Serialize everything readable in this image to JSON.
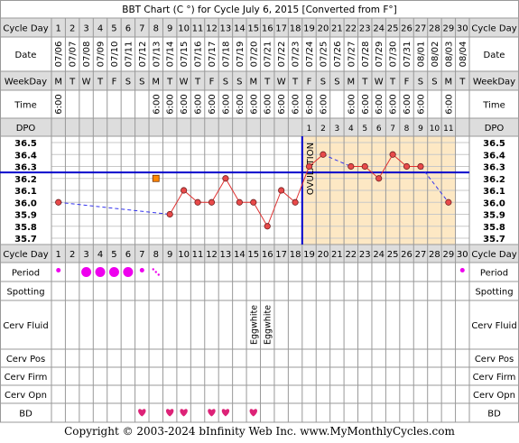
{
  "title": "BBT Chart (C °) for Cycle July 6, 2015  [Converted from F°]",
  "copyright": "Copyright © 2003-2024 bInfinity Web Inc.    www.MyMonthlyCycles.com",
  "row_labels": {
    "cycle_day": "Cycle Day",
    "date": "Date",
    "weekday": "WeekDay",
    "time": "Time",
    "dpo": "DPO",
    "period": "Period",
    "spotting": "Spotting",
    "cerv_fluid": "Cerv Fluid",
    "cerv_pos": "Cerv Pos",
    "cerv_firm": "Cerv Firm",
    "cerv_opn": "Cerv Opn",
    "bd": "BD"
  },
  "ovulation_label": "OVULATION",
  "colors": {
    "grid": "#999999",
    "header_bg": "#dddddd",
    "shade": "#fde8c4",
    "coverline": "#0000cc",
    "temp_line": "#e03030",
    "temp_point": "#e84a4a",
    "projection": "#3333ee",
    "period": "#ee00ee",
    "heart": "#dd2277",
    "off_point": "#ff8800"
  },
  "chart_data": {
    "type": "line",
    "cycle_days": [
      1,
      2,
      3,
      4,
      5,
      6,
      7,
      8,
      9,
      10,
      11,
      12,
      13,
      14,
      15,
      16,
      17,
      18,
      19,
      20,
      21,
      22,
      23,
      24,
      25,
      26,
      27,
      28,
      29,
      30
    ],
    "dates": [
      "07/06",
      "07/07",
      "07/08",
      "07/09",
      "07/10",
      "07/11",
      "07/12",
      "07/13",
      "07/14",
      "07/15",
      "07/16",
      "07/17",
      "07/18",
      "07/19",
      "07/20",
      "07/21",
      "07/22",
      "07/23",
      "07/24",
      "07/25",
      "07/26",
      "07/27",
      "07/28",
      "07/29",
      "07/30",
      "07/31",
      "08/01",
      "08/02",
      "08/03",
      "08/04"
    ],
    "weekdays": [
      "M",
      "T",
      "W",
      "T",
      "F",
      "S",
      "S",
      "M",
      "T",
      "W",
      "T",
      "F",
      "S",
      "S",
      "M",
      "T",
      "W",
      "T",
      "F",
      "S",
      "S",
      "M",
      "T",
      "W",
      "T",
      "F",
      "S",
      "S",
      "M",
      "T"
    ],
    "times": [
      "6:00",
      "",
      "",
      "",
      "",
      "",
      "",
      "6:00",
      "6:00",
      "6:00",
      "6:00",
      "6:00",
      "6:00",
      "6:00",
      "6:00",
      "6:00",
      "6:00",
      "6:00",
      "6:00",
      "6:00",
      "",
      "6:00",
      "6:00",
      "6:00",
      "6:00",
      "6:00",
      "6:00",
      "",
      "6:00",
      ""
    ],
    "dpo": [
      "",
      "",
      "",
      "",
      "",
      "",
      "",
      "",
      "",
      "",
      "",
      "",
      "",
      "",
      "",
      "",
      "",
      "",
      "1",
      "2",
      "3",
      "4",
      "5",
      "6",
      "7",
      "8",
      "9",
      "10",
      "11",
      ""
    ],
    "temps": [
      36.0,
      null,
      null,
      null,
      null,
      null,
      null,
      null,
      35.9,
      36.1,
      36.0,
      36.0,
      36.2,
      36.0,
      36.0,
      35.8,
      36.1,
      36.0,
      36.3,
      36.4,
      null,
      36.3,
      36.3,
      36.2,
      36.4,
      36.3,
      36.3,
      null,
      36.0,
      null
    ],
    "off_points": [
      {
        "day": 8,
        "temp": 36.2
      }
    ],
    "y_ticks": [
      36.5,
      36.4,
      36.3,
      36.2,
      36.1,
      36.0,
      35.9,
      35.8,
      35.7
    ],
    "ylim": [
      35.7,
      36.5
    ],
    "coverline": 36.25,
    "ovulation_day": 18,
    "period": [
      {
        "day": 1,
        "level": 1
      },
      {
        "day": 3,
        "level": 3
      },
      {
        "day": 4,
        "level": 3
      },
      {
        "day": 5,
        "level": 3
      },
      {
        "day": 6,
        "level": 3
      },
      {
        "day": 7,
        "level": 1
      },
      {
        "day": 8,
        "level": 0.5
      },
      {
        "day": 30,
        "level": 1
      }
    ],
    "cerv_fluid": [
      {
        "day": 15,
        "text": "Eggwhite"
      },
      {
        "day": 16,
        "text": "Eggwhite"
      }
    ],
    "bd_days": [
      7,
      9,
      10,
      12,
      13,
      15
    ]
  }
}
